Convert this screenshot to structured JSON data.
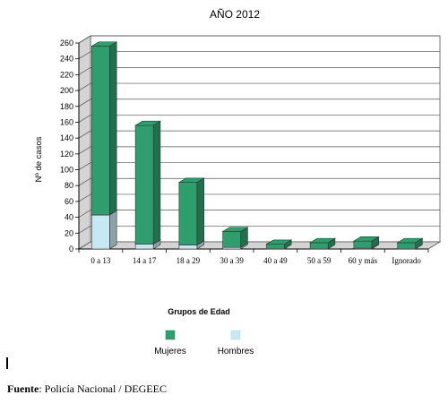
{
  "chart_data": {
    "type": "bar",
    "title": "AÑO 2012",
    "xlabel": "Grupos de Edad",
    "ylabel": "Nº de casos",
    "ylim": [
      0,
      260
    ],
    "yticks": [
      0,
      20,
      40,
      60,
      80,
      100,
      120,
      140,
      160,
      180,
      200,
      220,
      240,
      260
    ],
    "categories": [
      "0 a 13",
      "14 a 17",
      "18 a 29",
      "30 a 39",
      "40 a 49",
      "50 a 59",
      "60 y más",
      "Ignorado"
    ],
    "stacked": true,
    "grid": true,
    "legend_position": "bottom",
    "series": [
      {
        "name": "Hombres",
        "color": "#c6e8f2",
        "values": [
          43,
          6,
          5,
          2,
          0,
          0,
          1,
          0
        ]
      },
      {
        "name": "Mujeres",
        "color": "#2e9e6e",
        "values": [
          213,
          150,
          79,
          20,
          6,
          8,
          9,
          8
        ]
      }
    ]
  },
  "source": {
    "label": "Fuente",
    "text": ": Policía Nacional / DEGEEC"
  }
}
